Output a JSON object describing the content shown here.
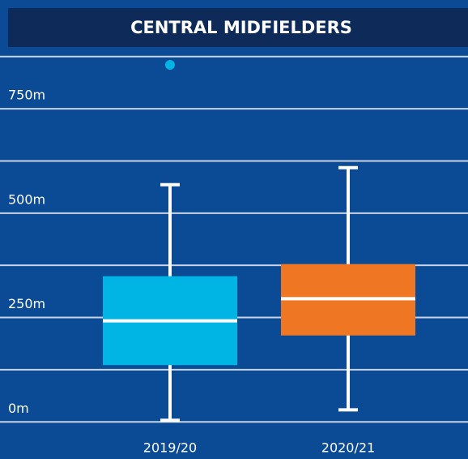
{
  "chart_data": {
    "type": "box",
    "title": "CENTRAL MIDFIELDERS",
    "categories": [
      "2019/20",
      "2020/21"
    ],
    "boxes": [
      {
        "min": 4,
        "q1": 136,
        "median": 242,
        "q3": 349,
        "max": 568,
        "outliers": [
          855
        ],
        "color": "#00b4e4"
      },
      {
        "min": 29,
        "q1": 207,
        "median": 295,
        "q3": 378,
        "max": 609,
        "outliers": [],
        "color": "#ef7622"
      }
    ],
    "ylim": [
      -15,
      890
    ],
    "yticks": [
      {
        "value": 0,
        "label": "0m"
      },
      {
        "value": 250,
        "label": "250m"
      },
      {
        "value": 500,
        "label": "500m"
      },
      {
        "value": 750,
        "label": "750m"
      }
    ],
    "gridlines": [
      0,
      125,
      250,
      375,
      500,
      625,
      750,
      875
    ],
    "grid": true
  }
}
